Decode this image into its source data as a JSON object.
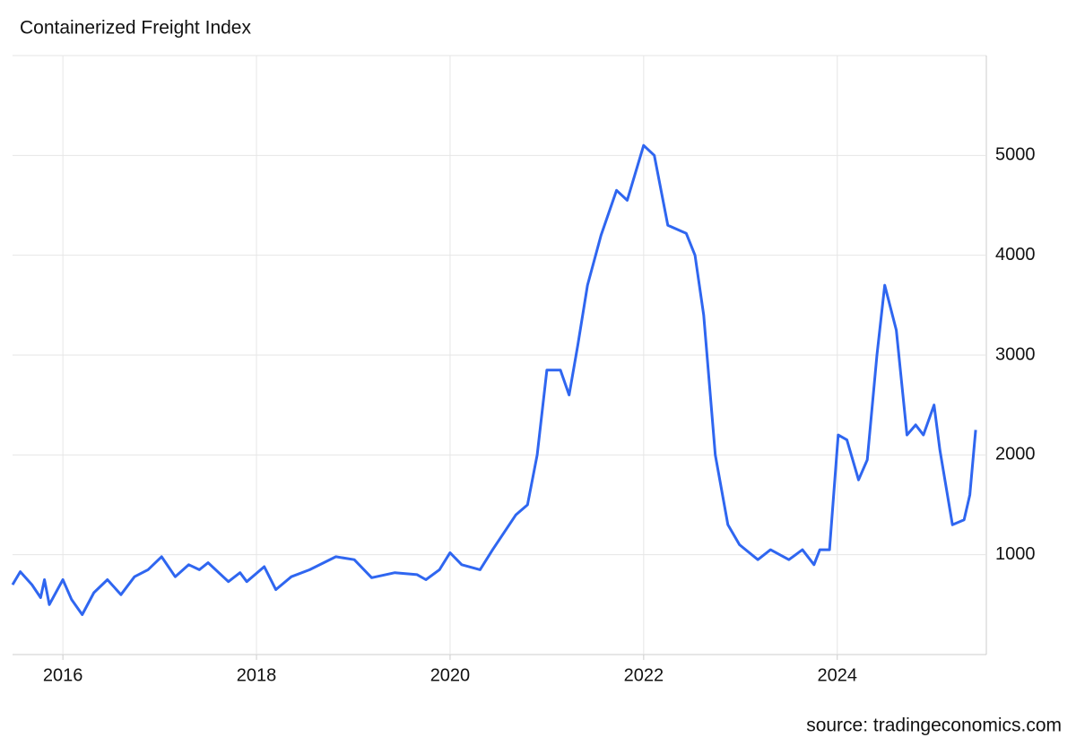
{
  "chart_data": {
    "type": "line",
    "title": "Containerized Freight Index",
    "source": "source: tradingeconomics.com",
    "series": [
      {
        "name": "Containerized Freight Index",
        "color": "#2f66f0",
        "x": [
          2015.48,
          2015.56,
          2015.68,
          2015.77,
          2015.81,
          2015.86,
          2016.0,
          2016.09,
          2016.2,
          2016.32,
          2016.46,
          2016.6,
          2016.74,
          2016.88,
          2017.02,
          2017.16,
          2017.3,
          2017.41,
          2017.5,
          2017.71,
          2017.83,
          2017.9,
          2018.08,
          2018.2,
          2018.36,
          2018.55,
          2018.82,
          2019.01,
          2019.19,
          2019.43,
          2019.66,
          2019.75,
          2019.89,
          2020.0,
          2020.12,
          2020.31,
          2020.44,
          2020.68,
          2020.8,
          2020.9,
          2021.0,
          2021.14,
          2021.23,
          2021.32,
          2021.42,
          2021.56,
          2021.72,
          2021.83,
          2022.0,
          2022.11,
          2022.25,
          2022.44,
          2022.53,
          2022.62,
          2022.74,
          2022.87,
          2022.99,
          2023.18,
          2023.31,
          2023.5,
          2023.64,
          2023.76,
          2023.82,
          2023.92,
          2024.01,
          2024.1,
          2024.22,
          2024.31,
          2024.41,
          2024.49,
          2024.61,
          2024.72,
          2024.81,
          2024.89,
          2025.0,
          2025.06,
          2025.19,
          2025.31,
          2025.37,
          2025.43
        ],
        "values": [
          700,
          830,
          700,
          570,
          750,
          500,
          750,
          550,
          400,
          620,
          750,
          600,
          780,
          850,
          980,
          780,
          900,
          850,
          920,
          730,
          820,
          730,
          880,
          650,
          780,
          850,
          980,
          950,
          770,
          820,
          800,
          750,
          850,
          1020,
          900,
          850,
          1050,
          1400,
          1500,
          2000,
          2850,
          2850,
          2600,
          3100,
          3700,
          4200,
          4650,
          4550,
          5100,
          5000,
          4300,
          4220,
          4000,
          3400,
          2000,
          1300,
          1100,
          950,
          1050,
          950,
          1050,
          900,
          1050,
          1050,
          2200,
          2150,
          1750,
          1950,
          3000,
          3700,
          3250,
          2200,
          2300,
          2200,
          2500,
          2050,
          1300,
          1350,
          1600,
          2250
        ]
      }
    ],
    "xlim": [
      2015.48,
      2025.54
    ],
    "xticks": [
      2016,
      2018,
      2020,
      2022,
      2024
    ],
    "ylim": [
      0,
      6000
    ],
    "yticks": [
      1000,
      2000,
      3000,
      4000,
      5000
    ],
    "grid": true
  }
}
